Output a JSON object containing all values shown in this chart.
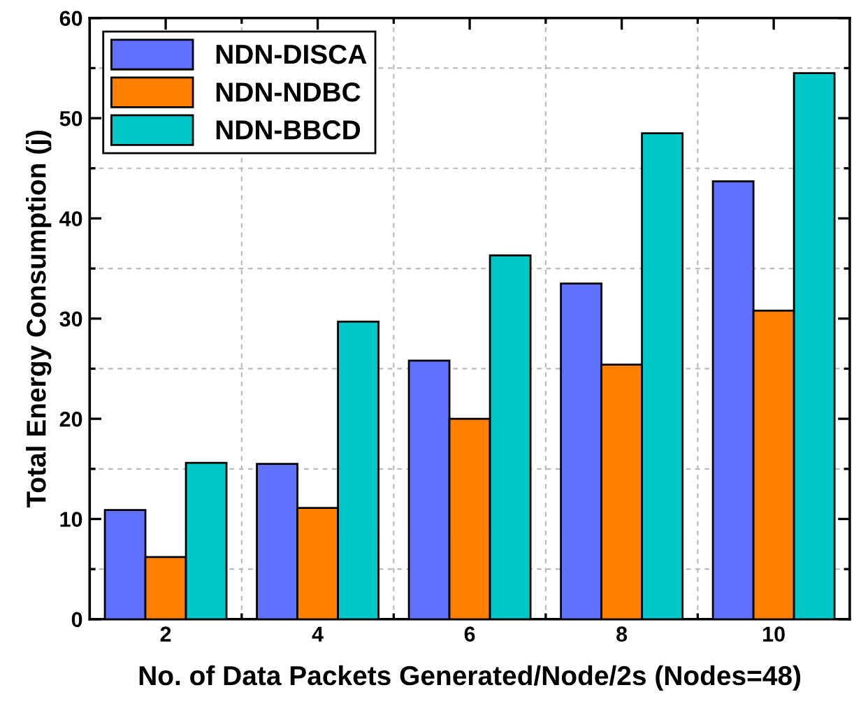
{
  "chart_data": {
    "type": "bar",
    "xlabel": "No. of Data Packets Generated/Node/2s (Nodes=48)",
    "ylabel": "Total Energy Consumption (j)",
    "categories": [
      "2",
      "4",
      "6",
      "8",
      "10"
    ],
    "series": [
      {
        "name": "NDN-DISCA",
        "color": "#6070ff",
        "values": [
          10.9,
          15.5,
          25.8,
          33.5,
          43.7
        ]
      },
      {
        "name": "NDN-NDBC",
        "color": "#ff7f00",
        "values": [
          6.2,
          11.1,
          20.0,
          25.4,
          30.8
        ]
      },
      {
        "name": "NDN-BBCD",
        "color": "#00c8c8",
        "values": [
          15.6,
          29.7,
          36.3,
          48.5,
          54.5
        ]
      }
    ],
    "ylim": [
      0,
      60
    ],
    "yticks": [
      0,
      10,
      20,
      30,
      40,
      50,
      60
    ],
    "grid": true,
    "legend": "top left"
  }
}
